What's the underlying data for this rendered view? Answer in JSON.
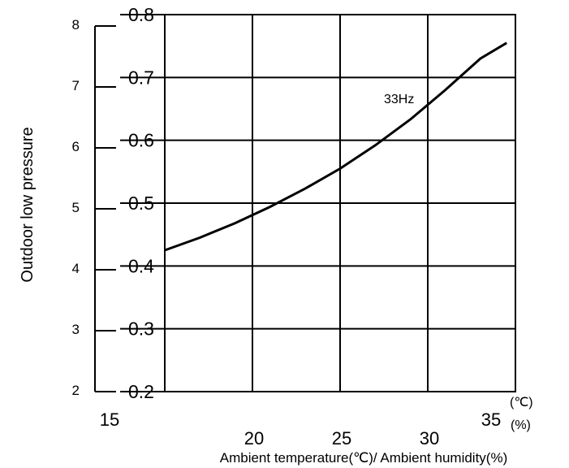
{
  "chart_data": {
    "type": "line",
    "title": "",
    "xlabel": "Ambient temperature(℃)/ Ambient humidity(%)",
    "ylabel": "Outdoor low pressure",
    "x_unit_temp": "(℃)",
    "x_unit_humidity": "(%)",
    "xlim": [
      15,
      35
    ],
    "ylim": [
      0.2,
      0.8
    ],
    "y2lim": [
      2,
      8
    ],
    "x_ticks_upper": [
      "15",
      "35"
    ],
    "x_ticks_lower": [
      "20",
      "25",
      "30"
    ],
    "y_ticks": [
      "0.2",
      "0.3",
      "0.4",
      "0.5",
      "0.6",
      "0.7",
      "0.8"
    ],
    "y2_ticks": [
      "2",
      "3",
      "4",
      "5",
      "6",
      "7",
      "8"
    ],
    "grid": true,
    "series": [
      {
        "name": "33Hz",
        "x": [
          15,
          17,
          19,
          21,
          23,
          25,
          27,
          29,
          31,
          33,
          34.5
        ],
        "y": [
          0.425,
          0.445,
          0.468,
          0.494,
          0.523,
          0.555,
          0.592,
          0.633,
          0.68,
          0.73,
          0.755
        ]
      }
    ]
  }
}
